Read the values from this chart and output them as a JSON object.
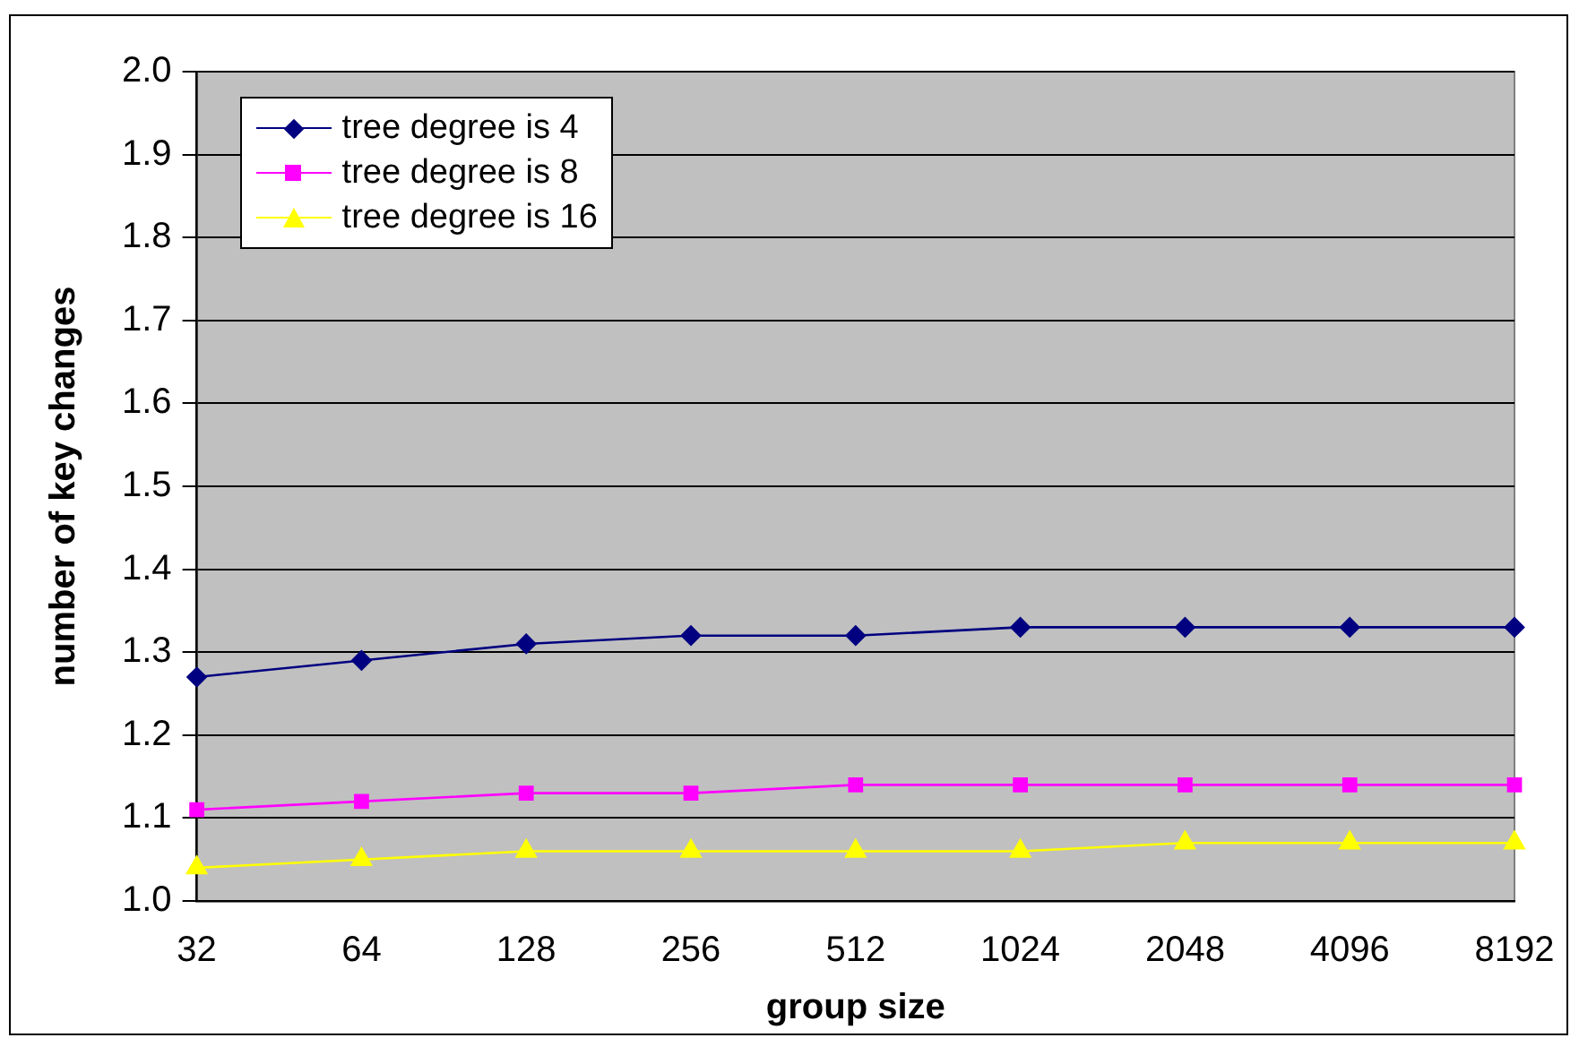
{
  "chart_data": {
    "type": "line",
    "xlabel": "group size",
    "ylabel": "number of key changes",
    "categories": [
      "32",
      "64",
      "128",
      "256",
      "512",
      "1024",
      "2048",
      "4096",
      "8192"
    ],
    "series": [
      {
        "name": "tree degree is 4",
        "color": "#000080",
        "marker": "diamond",
        "values": [
          1.27,
          1.29,
          1.31,
          1.32,
          1.32,
          1.33,
          1.33,
          1.33,
          1.33
        ]
      },
      {
        "name": "tree degree is 8",
        "color": "#ff00ff",
        "marker": "square",
        "values": [
          1.11,
          1.12,
          1.13,
          1.13,
          1.14,
          1.14,
          1.14,
          1.14,
          1.14
        ]
      },
      {
        "name": "tree degree is 16",
        "color": "#ffff00",
        "marker": "triangle",
        "values": [
          1.04,
          1.05,
          1.06,
          1.06,
          1.06,
          1.06,
          1.07,
          1.07,
          1.07
        ]
      }
    ],
    "ylim": [
      1.0,
      2.0
    ],
    "yticks": [
      {
        "value": 1.0,
        "label": "1.0"
      },
      {
        "value": 1.1,
        "label": "1.1"
      },
      {
        "value": 1.2,
        "label": "1.2"
      },
      {
        "value": 1.3,
        "label": "1.3"
      },
      {
        "value": 1.4,
        "label": "1.4"
      },
      {
        "value": 1.5,
        "label": "1.5"
      },
      {
        "value": 1.6,
        "label": "1.6"
      },
      {
        "value": 1.7,
        "label": "1.7"
      },
      {
        "value": 1.8,
        "label": "1.8"
      },
      {
        "value": 1.9,
        "label": "1.9"
      },
      {
        "value": 2.0,
        "label": "2.0"
      }
    ],
    "grid": "y",
    "legend": "top left"
  }
}
